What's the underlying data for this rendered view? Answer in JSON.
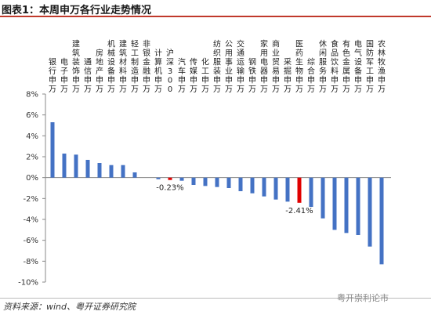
{
  "header": {
    "title": "图表1：本周申万各行业走势情况"
  },
  "footer": {
    "source": "资料来源：wind、粤开证券研究院",
    "watermark": "粤开崇利论市"
  },
  "chart_data": {
    "type": "bar",
    "ylim": [
      -10,
      8
    ],
    "yticks": [
      "8%",
      "6%",
      "4%",
      "2%",
      "0%",
      "-2%",
      "-4%",
      "-6%",
      "-8%",
      "-10%"
    ],
    "grid": false,
    "categories": [
      "银行(申万)",
      "电子(申万)",
      "建筑装饰(申万)",
      "通信(申万)",
      "房地产(申万)",
      "机械设备(申万)",
      "建筑材料(申万)",
      "轻工制造(申万)",
      "非银金融(申万)",
      "计算机(申万)",
      "沪深300",
      "汽车(申万)",
      "传媒(申万)",
      "化工(申万)",
      "纺织服装(申万)",
      "公用事业(申万)",
      "交通运输(申万)",
      "钢铁(申万)",
      "家用电器(申万)",
      "商业贸易(申万)",
      "采掘(申万)",
      "医药生物(申万)",
      "综合(申万)",
      "休闲服务(申万)",
      "食品饮料(申万)",
      "有色金属(申万)",
      "电气设备(申万)",
      "国防军工(申万)",
      "农林牧渔(申万)"
    ],
    "values": [
      5.3,
      2.3,
      2.2,
      1.7,
      1.4,
      1.2,
      1.2,
      0.5,
      0.0,
      -0.15,
      -0.23,
      -0.3,
      -0.7,
      -0.8,
      -0.9,
      -1.0,
      -1.3,
      -1.5,
      -1.8,
      -2.1,
      -2.3,
      -2.41,
      -2.8,
      -3.9,
      -5.0,
      -5.3,
      -5.5,
      -6.6,
      -8.3
    ],
    "highlight_indices": [
      10,
      21
    ],
    "colors": {
      "default": "#4472c4",
      "highlight": "#e00000"
    },
    "data_labels": [
      {
        "index": 10,
        "text": "-0.23%"
      },
      {
        "index": 21,
        "text": "-2.41%"
      }
    ]
  }
}
